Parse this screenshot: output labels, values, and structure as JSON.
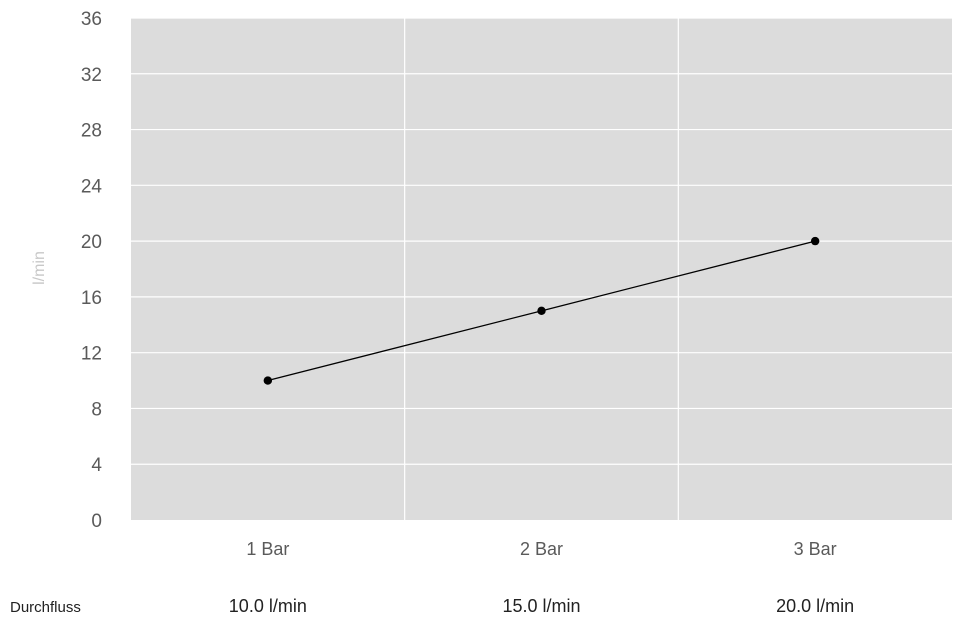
{
  "chart_data": {
    "type": "line",
    "categories": [
      "1 Bar",
      "2 Bar",
      "3 Bar"
    ],
    "series": [
      {
        "values": [
          10,
          15,
          20
        ]
      }
    ],
    "ylabel": "l/min",
    "ylim": [
      0,
      36
    ],
    "yticks": [
      0,
      4,
      8,
      12,
      16,
      20,
      24,
      28,
      32,
      36
    ],
    "grid": true,
    "colors": {
      "plot_background": "#dcdcdc",
      "grid": "#ffffff",
      "line": "#000000",
      "marker": "#000000"
    }
  },
  "table": {
    "row_label": "Durchfluss",
    "values": [
      "10.0 l/min",
      "15.0 l/min",
      "20.0 l/min"
    ]
  }
}
